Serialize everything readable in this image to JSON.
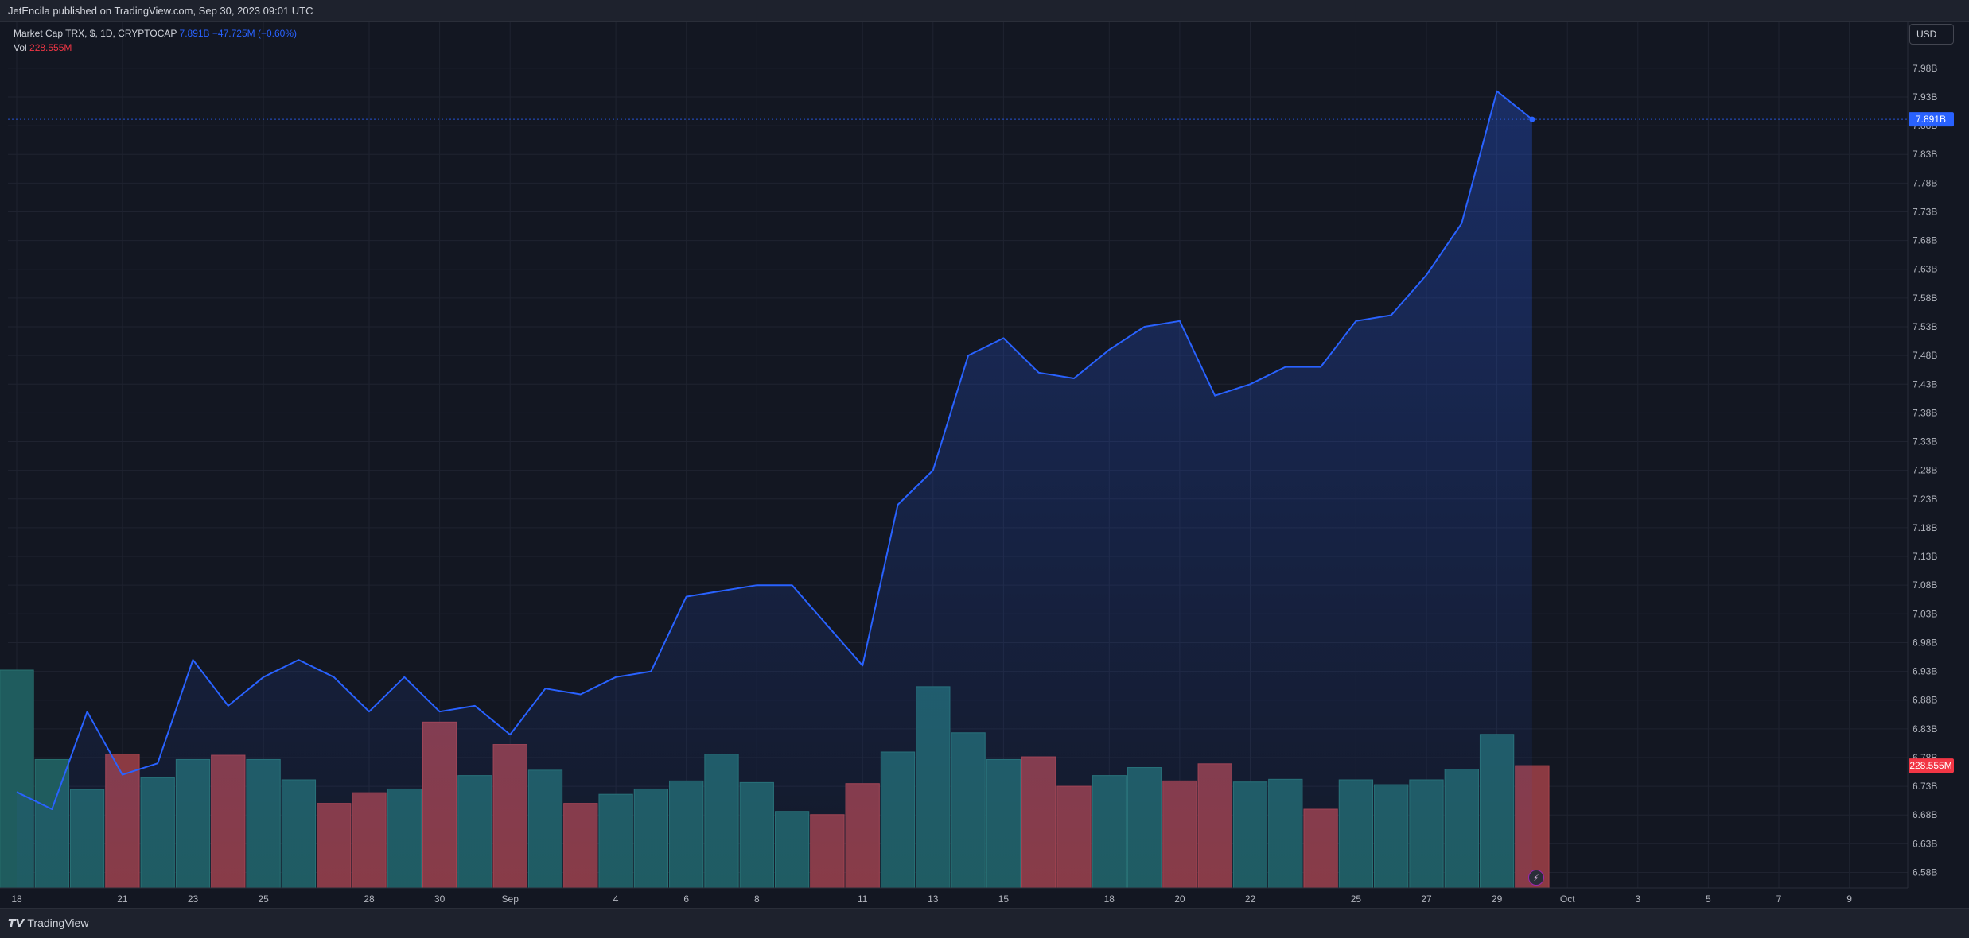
{
  "header": {
    "published": "JetEncila published on TradingView.com, Sep 30, 2023 09:01 UTC"
  },
  "legend": {
    "symbol": "Market Cap TRX, $, 1D, CRYPTOCAP",
    "last": "7.891B",
    "change": "−47.725M (−0.60%)",
    "vol_label": "Vol",
    "vol_value": "228.555M"
  },
  "currency": "USD",
  "price_badge": "7.891B",
  "volume_badge": "228.555M",
  "footer": {
    "logo_text": "TradingView"
  },
  "colors": {
    "line": "#2962ff",
    "vol_up": "#1f5c5e",
    "vol_down": "#8b3a42",
    "vol_up_edge": "#287270",
    "vol_down_edge": "#a9434b"
  },
  "chart_data": {
    "type": "area",
    "title": "Market Cap TRX, $, 1D, CRYPTOCAP",
    "yunit": "USD billions",
    "ylim": [
      6.553,
      8.06
    ],
    "y_ticks": [
      {
        "v": 6.58,
        "label": "6.58B"
      },
      {
        "v": 6.63,
        "label": "6.63B"
      },
      {
        "v": 6.68,
        "label": "6.68B"
      },
      {
        "v": 6.73,
        "label": "6.73B"
      },
      {
        "v": 6.78,
        "label": "6.78B"
      },
      {
        "v": 6.83,
        "label": "6.83B"
      },
      {
        "v": 6.88,
        "label": "6.88B"
      },
      {
        "v": 6.93,
        "label": "6.93B"
      },
      {
        "v": 6.98,
        "label": "6.98B"
      },
      {
        "v": 7.03,
        "label": "7.03B"
      },
      {
        "v": 7.08,
        "label": "7.08B"
      },
      {
        "v": 7.13,
        "label": "7.13B"
      },
      {
        "v": 7.18,
        "label": "7.18B"
      },
      {
        "v": 7.23,
        "label": "7.23B"
      },
      {
        "v": 7.28,
        "label": "7.28B"
      },
      {
        "v": 7.33,
        "label": "7.33B"
      },
      {
        "v": 7.38,
        "label": "7.38B"
      },
      {
        "v": 7.43,
        "label": "7.43B"
      },
      {
        "v": 7.48,
        "label": "7.48B"
      },
      {
        "v": 7.53,
        "label": "7.53B"
      },
      {
        "v": 7.58,
        "label": "7.58B"
      },
      {
        "v": 7.63,
        "label": "7.63B"
      },
      {
        "v": 7.68,
        "label": "7.68B"
      },
      {
        "v": 7.73,
        "label": "7.73B"
      },
      {
        "v": 7.78,
        "label": "7.78B"
      },
      {
        "v": 7.83,
        "label": "7.83B"
      },
      {
        "v": 7.88,
        "label": "7.88B"
      },
      {
        "v": 7.93,
        "label": "7.93B"
      },
      {
        "v": 7.98,
        "label": "7.98B"
      }
    ],
    "x_ticks": [
      {
        "i": 0,
        "label": "18"
      },
      {
        "i": 3,
        "label": "21"
      },
      {
        "i": 5,
        "label": "23"
      },
      {
        "i": 7,
        "label": "25"
      },
      {
        "i": 10,
        "label": "28"
      },
      {
        "i": 12,
        "label": "30"
      },
      {
        "i": 14,
        "label": "Sep"
      },
      {
        "i": 17,
        "label": "4"
      },
      {
        "i": 19,
        "label": "6"
      },
      {
        "i": 21,
        "label": "8"
      },
      {
        "i": 24,
        "label": "11"
      },
      {
        "i": 26,
        "label": "13"
      },
      {
        "i": 28,
        "label": "15"
      },
      {
        "i": 31,
        "label": "18"
      },
      {
        "i": 33,
        "label": "20"
      },
      {
        "i": 35,
        "label": "22"
      },
      {
        "i": 38,
        "label": "25"
      },
      {
        "i": 40,
        "label": "27"
      },
      {
        "i": 42,
        "label": "29"
      },
      {
        "i": 44,
        "label": "Oct"
      },
      {
        "i": 46,
        "label": "3"
      },
      {
        "i": 48,
        "label": "5"
      },
      {
        "i": 50,
        "label": "7"
      },
      {
        "i": 52,
        "label": "9"
      }
    ],
    "x_count": 54,
    "values": [
      6.72,
      6.69,
      6.86,
      6.75,
      6.77,
      6.95,
      6.87,
      6.92,
      6.95,
      6.92,
      6.86,
      6.92,
      6.86,
      6.87,
      6.82,
      6.9,
      6.89,
      6.92,
      6.93,
      7.06,
      7.07,
      7.08,
      7.08,
      7.01,
      6.94,
      7.22,
      7.28,
      7.48,
      7.51,
      7.45,
      7.44,
      7.49,
      7.53,
      7.54,
      7.41,
      7.43,
      7.46,
      7.46,
      7.54,
      7.55,
      7.62,
      7.71,
      7.94,
      7.891
    ],
    "volume": {
      "unit": "M USD",
      "max": 407,
      "last": 228.555,
      "values": [
        407,
        240,
        184,
        250,
        206,
        240,
        248,
        240,
        202,
        158,
        178,
        185,
        310,
        210,
        268,
        220,
        158,
        175,
        185,
        200,
        250,
        197,
        143,
        137,
        195,
        254,
        376,
        290,
        240,
        245,
        190,
        210,
        225,
        200,
        232,
        198,
        203,
        147,
        202,
        193,
        202,
        222,
        287,
        228.555
      ],
      "up": [
        true,
        true,
        true,
        false,
        true,
        true,
        false,
        true,
        true,
        false,
        false,
        true,
        false,
        true,
        false,
        true,
        false,
        true,
        true,
        true,
        true,
        true,
        true,
        false,
        false,
        true,
        true,
        true,
        true,
        false,
        false,
        true,
        true,
        false,
        false,
        true,
        true,
        false,
        true,
        true,
        true,
        true,
        true,
        false
      ]
    }
  }
}
